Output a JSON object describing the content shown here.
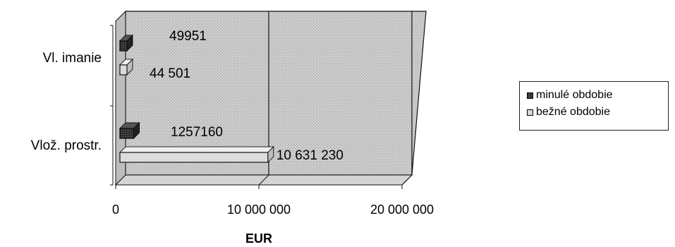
{
  "chart_data": {
    "type": "bar",
    "orientation": "horizontal",
    "three_d": true,
    "categories": [
      "Vl. imanie",
      "Vlož. prostr."
    ],
    "series": [
      {
        "name": "minulé obdobie",
        "values": [
          49951,
          1257160
        ],
        "labels": [
          "49951",
          "1257160"
        ],
        "color": "#3a3a3a"
      },
      {
        "name": "bežné obdobie",
        "values": [
          44501,
          10631230
        ],
        "labels": [
          "44 501",
          "10 631 230"
        ],
        "color": "#d8d8d8"
      }
    ],
    "xlabel": "EUR",
    "xlim": [
      0,
      20000000
    ],
    "xticks": [
      0,
      10000000,
      20000000
    ],
    "xtick_labels": [
      "0",
      "10 000 000",
      "20 000 000"
    ],
    "grid": true,
    "legend_position": "right"
  }
}
